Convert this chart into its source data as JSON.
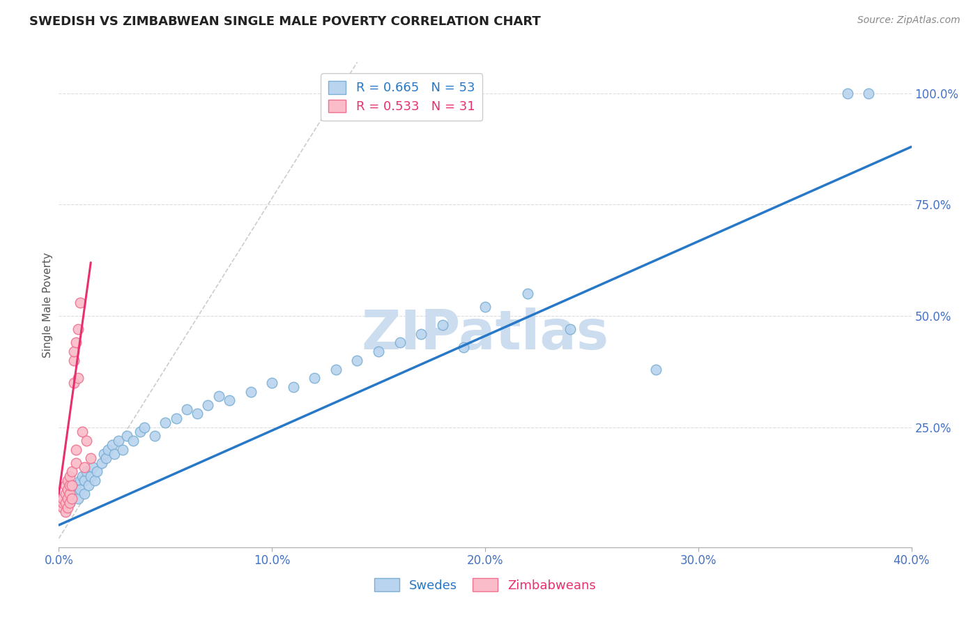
{
  "title": "SWEDISH VS ZIMBABWEAN SINGLE MALE POVERTY CORRELATION CHART",
  "source": "Source: ZipAtlas.com",
  "ylabel": "Single Male Poverty",
  "ytick_labels": [
    "25.0%",
    "50.0%",
    "75.0%",
    "100.0%"
  ],
  "ytick_values": [
    0.25,
    0.5,
    0.75,
    1.0
  ],
  "xtick_values": [
    0.0,
    0.1,
    0.2,
    0.3,
    0.4
  ],
  "xtick_labels": [
    "0.0%",
    "10.0%",
    "20.0%",
    "30.0%",
    "40.0%"
  ],
  "xlim": [
    0.0,
    0.4
  ],
  "ylim": [
    -0.02,
    1.07
  ],
  "blue_scatter_x": [
    0.005,
    0.005,
    0.007,
    0.008,
    0.009,
    0.01,
    0.01,
    0.011,
    0.012,
    0.012,
    0.013,
    0.014,
    0.015,
    0.016,
    0.017,
    0.018,
    0.02,
    0.021,
    0.022,
    0.023,
    0.025,
    0.026,
    0.028,
    0.03,
    0.032,
    0.035,
    0.038,
    0.04,
    0.045,
    0.05,
    0.055,
    0.06,
    0.065,
    0.07,
    0.075,
    0.08,
    0.09,
    0.1,
    0.11,
    0.12,
    0.13,
    0.14,
    0.15,
    0.16,
    0.17,
    0.18,
    0.19,
    0.2,
    0.22,
    0.24,
    0.28,
    0.37,
    0.38
  ],
  "blue_scatter_y": [
    0.09,
    0.08,
    0.1,
    0.12,
    0.09,
    0.13,
    0.11,
    0.14,
    0.1,
    0.13,
    0.15,
    0.12,
    0.14,
    0.16,
    0.13,
    0.15,
    0.17,
    0.19,
    0.18,
    0.2,
    0.21,
    0.19,
    0.22,
    0.2,
    0.23,
    0.22,
    0.24,
    0.25,
    0.23,
    0.26,
    0.27,
    0.29,
    0.28,
    0.3,
    0.32,
    0.31,
    0.33,
    0.35,
    0.34,
    0.36,
    0.38,
    0.4,
    0.42,
    0.44,
    0.46,
    0.48,
    0.43,
    0.52,
    0.55,
    0.47,
    0.38,
    1.0,
    1.0
  ],
  "pink_scatter_x": [
    0.002,
    0.002,
    0.002,
    0.003,
    0.003,
    0.003,
    0.003,
    0.004,
    0.004,
    0.004,
    0.004,
    0.005,
    0.005,
    0.005,
    0.005,
    0.006,
    0.006,
    0.006,
    0.007,
    0.007,
    0.007,
    0.008,
    0.008,
    0.008,
    0.009,
    0.009,
    0.01,
    0.011,
    0.012,
    0.013,
    0.015
  ],
  "pink_scatter_y": [
    0.07,
    0.08,
    0.09,
    0.06,
    0.08,
    0.1,
    0.12,
    0.07,
    0.09,
    0.11,
    0.13,
    0.08,
    0.1,
    0.12,
    0.14,
    0.09,
    0.12,
    0.15,
    0.35,
    0.4,
    0.42,
    0.17,
    0.2,
    0.44,
    0.47,
    0.36,
    0.53,
    0.24,
    0.16,
    0.22,
    0.18
  ],
  "blue_line_x": [
    0.0,
    0.4
  ],
  "blue_line_y": [
    0.03,
    0.88
  ],
  "pink_line_x": [
    0.0,
    0.015
  ],
  "pink_line_y": [
    0.1,
    0.62
  ],
  "diag_line_x": [
    0.0,
    0.14
  ],
  "diag_line_y": [
    0.0,
    1.07
  ],
  "blue_face": "#b8d4ef",
  "blue_edge": "#7bafd4",
  "pink_face": "#f9bcc8",
  "pink_edge": "#f07090",
  "blue_line_color": "#2878c8",
  "pink_line_color": "#e83070",
  "diag_color": "#cccccc",
  "grid_color": "#dddddd",
  "axis_tick_color": "#4472c4",
  "title_color": "#222222",
  "source_color": "#888888",
  "watermark_color": "#ccddf0",
  "ylabel_color": "#555555"
}
